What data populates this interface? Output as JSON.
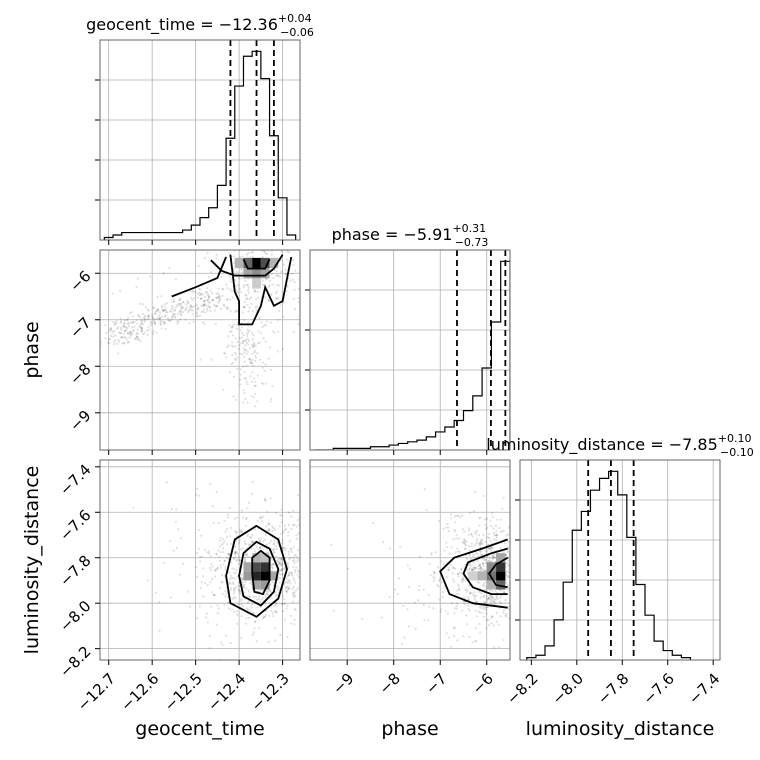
{
  "chart_data": {
    "type": "corner",
    "parameters": [
      {
        "label": "geocent_time",
        "title_prefix": "geocent_time = ",
        "title_value": "−12.36",
        "title_plus": "+0.04",
        "title_minus": "−0.06",
        "range": [
          -12.72,
          -12.26
        ],
        "ticks": [
          -12.7,
          -12.6,
          -12.5,
          -12.4,
          -12.3
        ],
        "tick_labels": [
          "−12.7",
          "−12.6",
          "−12.5",
          "−12.4",
          "−12.3"
        ],
        "quantiles": [
          -12.42,
          -12.36,
          -12.32
        ]
      },
      {
        "label": "phase",
        "title_prefix": "phase = ",
        "title_value": "−5.91",
        "title_plus": "+0.31",
        "title_minus": "−0.73",
        "range": [
          -9.8,
          -5.5
        ],
        "ticks": [
          -9,
          -8,
          -7,
          -6
        ],
        "tick_labels": [
          "−9",
          "−8",
          "−7",
          "−6"
        ],
        "quantiles": [
          -6.64,
          -5.91,
          -5.6
        ]
      },
      {
        "label": "luminosity_distance",
        "title_prefix": "luminosity_distance = ",
        "title_value": "−7.85",
        "title_plus": "+0.10",
        "title_minus": "−0.10",
        "range": [
          -8.25,
          -7.37
        ],
        "ticks": [
          -8.2,
          -8.0,
          -7.8,
          -7.6,
          -7.4
        ],
        "tick_labels": [
          "−8.2",
          "−8.0",
          "−7.8",
          "−7.6",
          "−7.4"
        ],
        "quantiles": [
          -7.95,
          -7.85,
          -7.75
        ]
      }
    ],
    "histograms": [
      {
        "param": 0,
        "x": [
          -12.7,
          -12.68,
          -12.66,
          -12.64,
          -12.62,
          -12.6,
          -12.58,
          -12.56,
          -12.54,
          -12.52,
          -12.5,
          -12.48,
          -12.46,
          -12.44,
          -12.42,
          -12.4,
          -12.38,
          -12.36,
          -12.34,
          -12.32,
          -12.3,
          -12.28
        ],
        "counts": [
          1,
          2,
          3,
          3,
          3,
          3,
          3,
          3,
          3,
          4,
          6,
          9,
          13,
          22,
          41,
          62,
          74,
          76,
          65,
          42,
          17,
          2
        ]
      },
      {
        "param": 1,
        "x": [
          -9.6,
          -9.4,
          -9.2,
          -9.0,
          -8.8,
          -8.6,
          -8.4,
          -8.2,
          -8.0,
          -7.8,
          -7.6,
          -7.4,
          -7.2,
          -7.0,
          -6.8,
          -6.6,
          -6.4,
          -6.2,
          -6.0,
          -5.8,
          -5.6
        ],
        "counts": [
          0,
          0,
          1,
          1,
          1,
          1,
          2,
          2,
          3,
          4,
          5,
          6,
          8,
          11,
          14,
          18,
          24,
          33,
          50,
          78,
          115
        ]
      },
      {
        "param": 2,
        "x": [
          -8.2,
          -8.16,
          -8.12,
          -8.08,
          -8.04,
          -8.0,
          -7.96,
          -7.92,
          -7.88,
          -7.84,
          -7.8,
          -7.76,
          -7.72,
          -7.68,
          -7.64,
          -7.6,
          -7.56,
          -7.52
        ],
        "counts": [
          1,
          2,
          6,
          17,
          33,
          55,
          63,
          72,
          77,
          80,
          70,
          52,
          32,
          19,
          8,
          4,
          2,
          1
        ]
      }
    ],
    "pairs": [
      {
        "x_param": 0,
        "y_param": 1,
        "density_cells": [
          {
            "x": -12.38,
            "y": -5.78,
            "v": 0.6
          },
          {
            "x": -12.36,
            "y": -5.78,
            "v": 1.0
          },
          {
            "x": -12.34,
            "y": -5.78,
            "v": 0.7
          },
          {
            "x": -12.38,
            "y": -6.0,
            "v": 0.35
          },
          {
            "x": -12.36,
            "y": -6.0,
            "v": 0.45
          },
          {
            "x": -12.34,
            "y": -6.0,
            "v": 0.35
          },
          {
            "x": -12.4,
            "y": -5.78,
            "v": 0.3
          },
          {
            "x": -12.32,
            "y": -5.78,
            "v": 0.3
          },
          {
            "x": -12.36,
            "y": -6.22,
            "v": 0.2
          }
        ],
        "contours": [
          [
            [
              -12.465,
              -5.72
            ],
            [
              -12.44,
              -5.95
            ],
            [
              -12.41,
              -6.05
            ],
            [
              -12.37,
              -6.05
            ],
            [
              -12.34,
              -6.05
            ],
            [
              -12.32,
              -5.9
            ],
            [
              -12.3,
              -5.6
            ]
          ],
          [
            [
              -12.555,
              -6.5
            ],
            [
              -12.5,
              -6.3
            ],
            [
              -12.45,
              -6.1
            ],
            [
              -12.43,
              -5.65
            ]
          ],
          [
            [
              -12.42,
              -5.6
            ],
            [
              -12.41,
              -6.4
            ],
            [
              -12.4,
              -6.6
            ],
            [
              -12.4,
              -7.1
            ],
            [
              -12.37,
              -7.1
            ],
            [
              -12.35,
              -6.7
            ],
            [
              -12.34,
              -6.3
            ],
            [
              -12.32,
              -6.7
            ],
            [
              -12.3,
              -6.6
            ],
            [
              -12.28,
              -5.65
            ]
          ],
          [
            [
              -12.39,
              -5.7
            ],
            [
              -12.38,
              -5.9
            ],
            [
              -12.34,
              -5.9
            ],
            [
              -12.33,
              -5.7
            ]
          ]
        ]
      },
      {
        "x_param": 0,
        "y_param": 2,
        "density_cells": [
          {
            "x": -12.36,
            "y": -7.88,
            "v": 0.85
          },
          {
            "x": -12.34,
            "y": -7.88,
            "v": 1.0
          },
          {
            "x": -12.36,
            "y": -7.84,
            "v": 0.7
          },
          {
            "x": -12.34,
            "y": -7.84,
            "v": 0.8
          },
          {
            "x": -12.38,
            "y": -7.84,
            "v": 0.35
          },
          {
            "x": -12.38,
            "y": -7.88,
            "v": 0.4
          },
          {
            "x": -12.32,
            "y": -7.88,
            "v": 0.35
          },
          {
            "x": -12.36,
            "y": -7.8,
            "v": 0.3
          },
          {
            "x": -12.36,
            "y": -7.92,
            "v": 0.35
          },
          {
            "x": -12.34,
            "y": -7.92,
            "v": 0.4
          },
          {
            "x": -12.34,
            "y": -7.8,
            "v": 0.25
          }
        ],
        "contours": [
          [
            [
              -12.43,
              -7.88
            ],
            [
              -12.42,
              -8.0
            ],
            [
              -12.36,
              -8.06
            ],
            [
              -12.31,
              -7.98
            ],
            [
              -12.29,
              -7.85
            ],
            [
              -12.31,
              -7.72
            ],
            [
              -12.36,
              -7.66
            ],
            [
              -12.41,
              -7.72
            ]
          ],
          [
            [
              -12.4,
              -7.88
            ],
            [
              -12.39,
              -7.97
            ],
            [
              -12.35,
              -8.01
            ],
            [
              -12.32,
              -7.95
            ],
            [
              -12.31,
              -7.85
            ],
            [
              -12.33,
              -7.76
            ],
            [
              -12.36,
              -7.73
            ],
            [
              -12.39,
              -7.78
            ]
          ],
          [
            [
              -12.37,
              -7.87
            ],
            [
              -12.365,
              -7.95
            ],
            [
              -12.345,
              -7.96
            ],
            [
              -12.33,
              -7.9
            ],
            [
              -12.33,
              -7.8
            ],
            [
              -12.35,
              -7.77
            ],
            [
              -12.37,
              -7.8
            ]
          ]
        ]
      },
      {
        "x_param": 1,
        "y_param": 2,
        "density_cells": [
          {
            "x": -5.7,
            "y": -7.88,
            "v": 1.0
          },
          {
            "x": -5.7,
            "y": -7.84,
            "v": 0.8
          },
          {
            "x": -5.7,
            "y": -7.92,
            "v": 0.6
          },
          {
            "x": -5.9,
            "y": -7.88,
            "v": 0.55
          },
          {
            "x": -5.9,
            "y": -7.84,
            "v": 0.45
          },
          {
            "x": -6.1,
            "y": -7.88,
            "v": 0.3
          },
          {
            "x": -5.7,
            "y": -7.8,
            "v": 0.35
          },
          {
            "x": -6.3,
            "y": -7.88,
            "v": 0.18
          },
          {
            "x": -5.9,
            "y": -7.92,
            "v": 0.3
          }
        ],
        "contours": [
          [
            [
              -5.55,
              -7.72
            ],
            [
              -6.1,
              -7.76
            ],
            [
              -6.7,
              -7.8
            ],
            [
              -7.0,
              -7.86
            ],
            [
              -6.8,
              -7.96
            ],
            [
              -6.3,
              -8.0
            ],
            [
              -5.55,
              -8.02
            ]
          ],
          [
            [
              -5.55,
              -7.76
            ],
            [
              -5.9,
              -7.78
            ],
            [
              -6.4,
              -7.82
            ],
            [
              -6.5,
              -7.87
            ],
            [
              -6.3,
              -7.93
            ],
            [
              -5.9,
              -7.96
            ],
            [
              -5.55,
              -7.96
            ]
          ],
          [
            [
              -5.55,
              -7.8
            ],
            [
              -5.8,
              -7.83
            ],
            [
              -5.95,
              -7.87
            ],
            [
              -5.8,
              -7.92
            ],
            [
              -5.55,
              -7.93
            ]
          ]
        ]
      }
    ],
    "grid": true
  }
}
